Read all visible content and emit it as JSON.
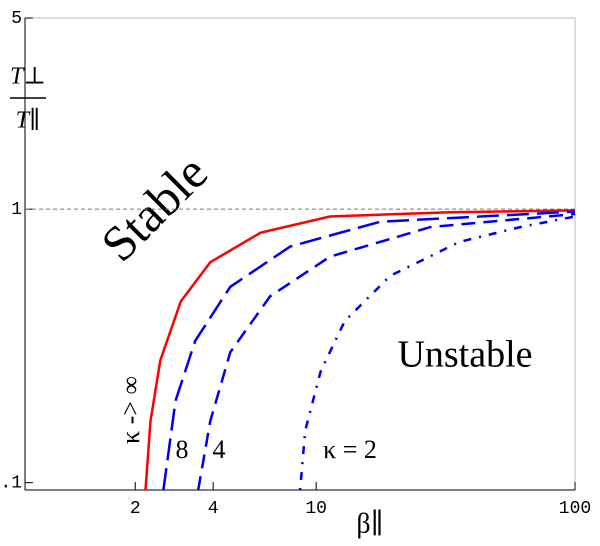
{
  "chart_data": {
    "type": "line",
    "xlabel": "β∥",
    "ylabel": {
      "numerator": "T⊥",
      "denominator": "T∥"
    },
    "log_x": true,
    "log_y": true,
    "xlim": [
      0.75,
      100
    ],
    "ylim": [
      0.094,
      5
    ],
    "xticks": [
      2,
      4,
      10,
      100
    ],
    "yticks": [
      0.1,
      1,
      5
    ],
    "reference_line": 1,
    "annotations": [
      "Stable",
      "Unstable"
    ],
    "series": [
      {
        "name": "κ -> ∞",
        "color": "#ff0000",
        "dash": "none",
        "x": [
          2.19,
          2.29,
          2.5,
          3,
          3.9,
          6.1,
          11.3,
          33,
          100
        ],
        "values": [
          0.094,
          0.168,
          0.28,
          0.46,
          0.64,
          0.82,
          0.94,
          0.975,
          0.99
        ]
      },
      {
        "name": "8",
        "color": "#0000ee",
        "dash": "22,8",
        "x": [
          2.57,
          2.86,
          3.41,
          4.66,
          7.94,
          17.7,
          100
        ],
        "values": [
          0.094,
          0.199,
          0.33,
          0.52,
          0.73,
          0.9,
          0.98
        ]
      },
      {
        "name": "4",
        "color": "#0000ee",
        "dash": "14,8",
        "x": [
          3.5,
          3.9,
          4.66,
          6.64,
          11.3,
          27.6,
          100
        ],
        "values": [
          0.094,
          0.168,
          0.3,
          0.48,
          0.67,
          0.86,
          0.96
        ]
      },
      {
        "name": "κ = 2",
        "color": "#0000ee",
        "dash": "2,8,8,8",
        "x": [
          8.67,
          9.07,
          10.4,
          12.9,
          19.3,
          35.9,
          61.4,
          100
        ],
        "values": [
          0.094,
          0.155,
          0.255,
          0.39,
          0.57,
          0.76,
          0.86,
          0.94
        ]
      }
    ]
  }
}
